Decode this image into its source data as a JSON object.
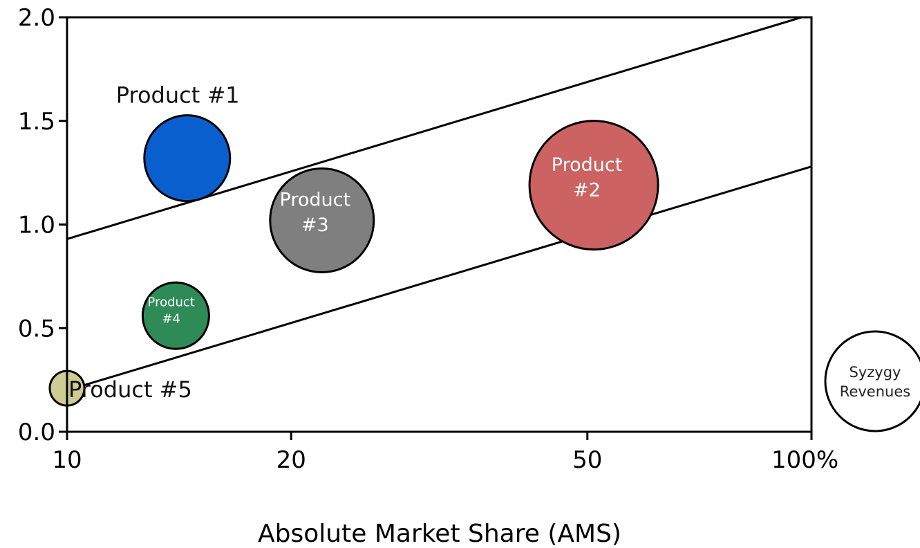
{
  "chart_data": {
    "type": "scatter",
    "subtype": "bubble",
    "xlabel": "Absolute Market Share (AMS)",
    "ylabel": "",
    "x_scale": "log",
    "xlim": [
      10,
      100
    ],
    "ylim": [
      0.0,
      2.0
    ],
    "x_ticks": [
      {
        "value": 10,
        "label": "10"
      },
      {
        "value": 20,
        "label": "20"
      },
      {
        "value": 50,
        "label": "50"
      },
      {
        "value": 100,
        "label": "100%"
      }
    ],
    "y_ticks": [
      {
        "value": 0.0,
        "label": "0.0"
      },
      {
        "value": 0.5,
        "label": "0.5"
      },
      {
        "value": 1.0,
        "label": "1.0"
      },
      {
        "value": 1.5,
        "label": "1.5"
      },
      {
        "value": 2.0,
        "label": "2.0"
      }
    ],
    "grid": false,
    "points": [
      {
        "label_lines": [
          "Product #1"
        ],
        "x": 14.5,
        "y": 1.32,
        "size": 62,
        "color": "#0a5fcf",
        "label_color": "#111111",
        "label_position": "above-left"
      },
      {
        "label_lines": [
          "Product",
          "#2"
        ],
        "x": 51,
        "y": 1.19,
        "size": 93,
        "color": "#cc6262",
        "label_color": "#ffffff",
        "label_position": "inside"
      },
      {
        "label_lines": [
          "Product",
          "#3"
        ],
        "x": 22,
        "y": 1.02,
        "size": 75,
        "color": "#7f7f7f",
        "label_color": "#ffffff",
        "label_position": "inside"
      },
      {
        "label_lines": [
          "Product",
          "#4"
        ],
        "x": 14,
        "y": 0.56,
        "size": 48,
        "color": "#2e8b57",
        "label_color": "#ffffff",
        "label_position": "inside"
      },
      {
        "label_lines": [
          "Product #5"
        ],
        "x": 10,
        "y": 0.21,
        "size": 25,
        "color": "#cfcb95",
        "label_color": "#111111",
        "label_position": "right"
      }
    ],
    "reference_lines": [
      {
        "x": [
          10,
          97
        ],
        "y": [
          0.93,
          2.0
        ]
      },
      {
        "x": [
          10,
          100
        ],
        "y": [
          0.2,
          1.28
        ]
      }
    ],
    "legend": {
      "label_lines": [
        "Syzygy",
        "Revenues"
      ],
      "placement": "outside-right-bottom"
    }
  }
}
